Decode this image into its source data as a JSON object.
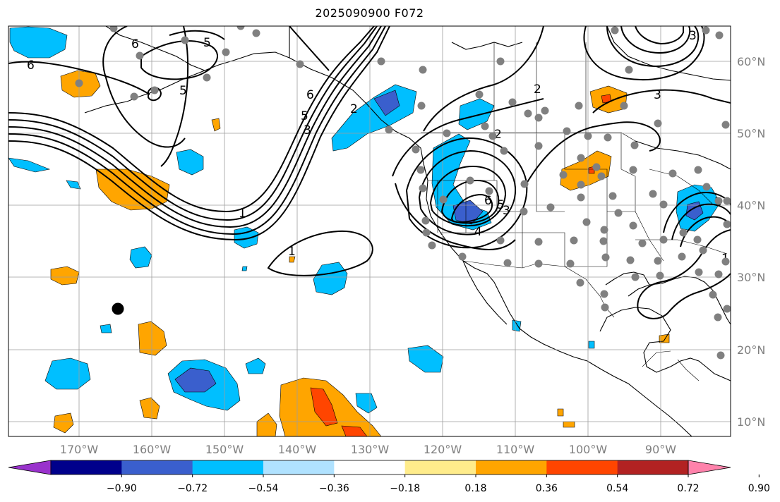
{
  "title": "2025090900 F072",
  "map": {
    "lon_ticks": [
      "170°W",
      "160°W",
      "150°W",
      "140°W",
      "130°W",
      "120°W",
      "110°W",
      "100°W",
      "90°W"
    ],
    "lat_ticks": [
      "60°N",
      "50°N",
      "40°N",
      "30°N",
      "20°N",
      "10°N"
    ],
    "contour_labels": [
      "6",
      "6",
      "5",
      "5",
      "6",
      "5",
      "3",
      "2",
      "2",
      "1",
      "1",
      "1",
      "3",
      "3",
      "6",
      "5",
      "4",
      "3",
      "3",
      "2"
    ],
    "fill_colors": {
      "le_-0.90": "#9932cc",
      "-0.90_-0.72": "#00008b",
      "-0.72_-0.54": "#3a5fcd",
      "-0.54_-0.36": "#00bfff",
      "-0.36_-0.18": "#b0e2ff",
      "-0.18_0.18": "#ffffff",
      "0.18_0.36": "#ffec8b",
      "0.36_0.54": "#ffa500",
      "0.54_0.72": "#ff4500",
      "0.72_0.90": "#b22222",
      "ge_0.90": "#ff82ab"
    },
    "contour_color": "#000000",
    "station_dot_color": "#808080",
    "marker_color": "#000000"
  },
  "colorbar": {
    "ticks": [
      "−0.90",
      "−0.72",
      "−0.54",
      "−0.36",
      "−0.18",
      "0.18",
      "0.36",
      "0.54",
      "0.72",
      "0.90"
    ],
    "colors": [
      "#9932cc",
      "#00008b",
      "#3a5fcd",
      "#00bfff",
      "#b0e2ff",
      "#ffffff",
      "#ffec8b",
      "#ffa500",
      "#ff4500",
      "#b22222",
      "#ff82ab"
    ]
  }
}
